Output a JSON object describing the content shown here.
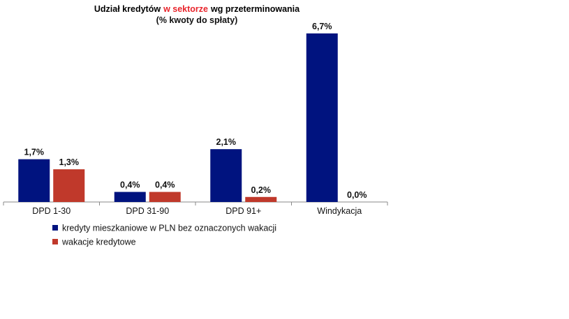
{
  "chart_data": {
    "type": "bar",
    "title": [
      {
        "text": "Udział kredytów",
        "color": "#000000"
      },
      {
        "text": "w sektorze",
        "color": "#e8242b"
      },
      {
        "text": "wg przeterminowania",
        "color": "#000000"
      }
    ],
    "subtitle": "(% kwoty do spłaty)",
    "categories": [
      "DPD 1-30",
      "DPD 31-90",
      "DPD 91+",
      "Windykacja"
    ],
    "series": [
      {
        "name": "kredyty mieszkaniowe w PLN bez oznaczonych wakacji",
        "color": "#00137f",
        "values": [
          1.7,
          0.4,
          2.1,
          6.7
        ],
        "value_labels": [
          "1,7%",
          "0,4%",
          "2,1%",
          "6,7%"
        ]
      },
      {
        "name": "wakacje kredytowe",
        "color": "#c0392b",
        "values": [
          1.3,
          0.4,
          0.2,
          0.0
        ],
        "value_labels": [
          "1,3%",
          "0,4%",
          "0,2%",
          "0,0%"
        ]
      }
    ]
  }
}
